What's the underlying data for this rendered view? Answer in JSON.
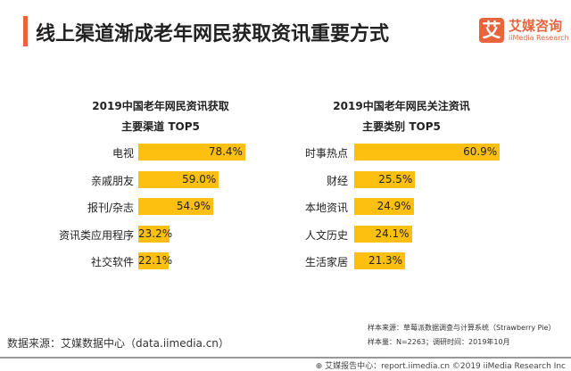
{
  "header": {
    "title": "线上渠道渐成老年网民获取资讯重要方式",
    "logo_mark": "艾",
    "logo_cn": "艾媒咨询",
    "logo_en": "iiMedia Research"
  },
  "colors": {
    "bar": "#fdc010",
    "accent": "#e8643c"
  },
  "chart_data": [
    {
      "type": "bar",
      "orientation": "horizontal",
      "title_line1": "2019中国老年网民资讯获取",
      "title_line2": "主要渠道 TOP5",
      "categories": [
        "电视",
        "亲戚朋友",
        "报刊/杂志",
        "资讯类应用程序",
        "社交软件"
      ],
      "values": [
        78.4,
        59.0,
        54.9,
        23.2,
        22.1
      ],
      "labels": [
        "78.4%",
        "59.0%",
        "54.9%",
        "23.2%",
        "22.1%"
      ],
      "unit": "%"
    },
    {
      "type": "bar",
      "orientation": "horizontal",
      "title_line1": "2019中国老年网民关注资讯",
      "title_line2": "主要类别 TOP5",
      "categories": [
        "时事热点",
        "财经",
        "本地资讯",
        "人文历史",
        "生活家居"
      ],
      "values": [
        60.9,
        25.5,
        24.9,
        24.1,
        21.3
      ],
      "labels": [
        "60.9%",
        "25.5%",
        "24.9%",
        "24.1%",
        "21.3%"
      ],
      "unit": "%"
    }
  ],
  "footer": {
    "source": "数据来源：艾媒数据中心（data.iimedia.cn）",
    "sample_source": "样本来源：草莓派数据调查与计算系统（Strawberry Pie）",
    "sample_size": "样本量：N=2263；调研时间：2019年10月",
    "copyright": "艾媒报告中心：report.iimedia.cn  ©2019  iiMedia Research Inc"
  }
}
